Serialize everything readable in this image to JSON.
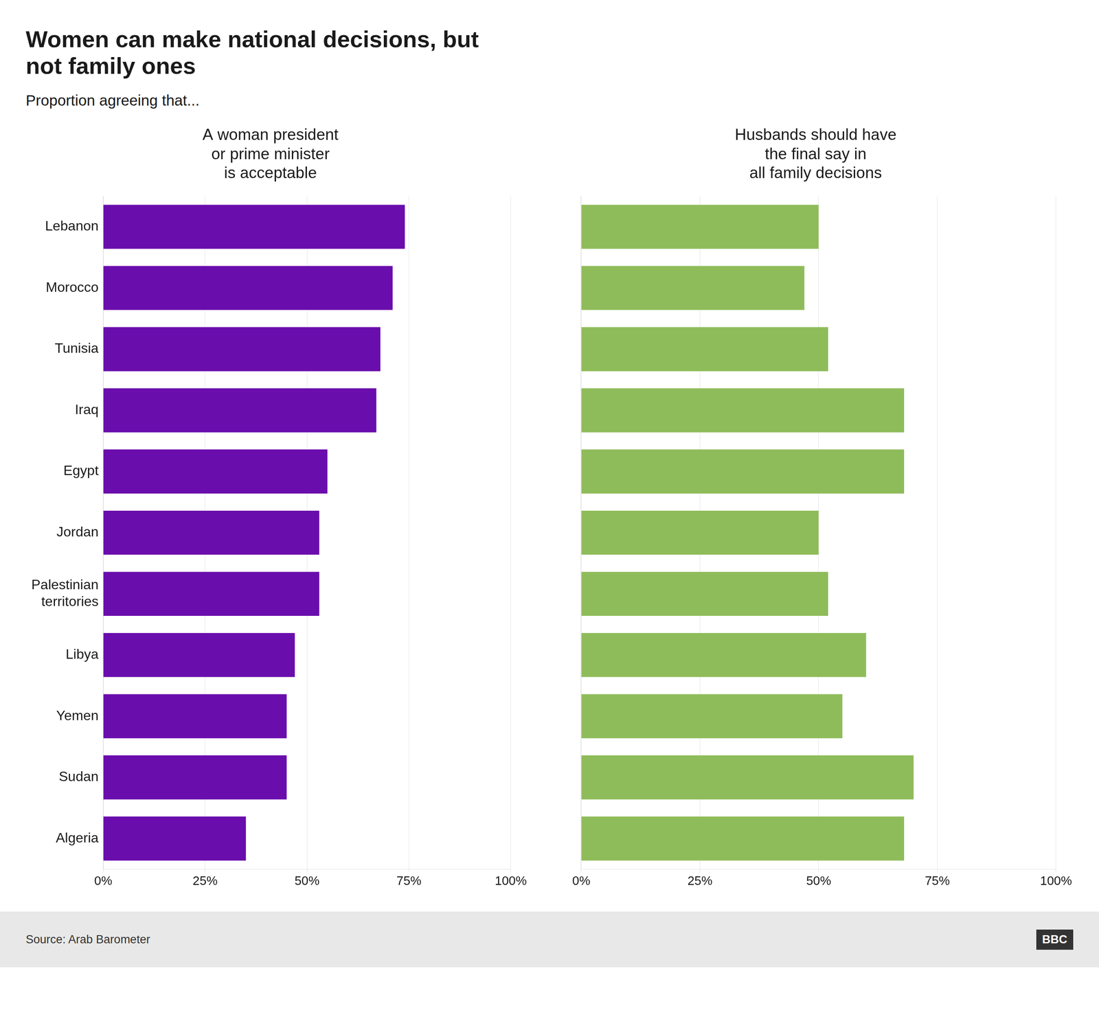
{
  "title": "Women can make national decisions, but\nnot family ones",
  "subtitle": "Proportion agreeing that...",
  "annotations": [
    "Source: Arab Barometer",
    "BBC"
  ],
  "chart_data": [
    {
      "type": "bar",
      "orientation": "horizontal",
      "title": "A woman president\nor prime minister\nis acceptable",
      "categories": [
        "Lebanon",
        "Morocco",
        "Tunisia",
        "Iraq",
        "Egypt",
        "Jordan",
        "Palestinian\nterritories",
        "Libya",
        "Yemen",
        "Sudan",
        "Algeria"
      ],
      "values": [
        74,
        71,
        68,
        67,
        55,
        53,
        53,
        47,
        45,
        45,
        35
      ],
      "color": "#6a0dad",
      "xlim": [
        0,
        100
      ],
      "xticks": [
        {
          "value": 0,
          "label": "0%"
        },
        {
          "value": 25,
          "label": "25%"
        },
        {
          "value": 50,
          "label": "50%"
        },
        {
          "value": 75,
          "label": "75%"
        },
        {
          "value": 100,
          "label": "100%"
        }
      ],
      "grid": true
    },
    {
      "type": "bar",
      "orientation": "horizontal",
      "title": "Husbands should have\nthe final say in\nall family decisions",
      "categories": [
        "Lebanon",
        "Morocco",
        "Tunisia",
        "Iraq",
        "Egypt",
        "Jordan",
        "Palestinian\nterritories",
        "Libya",
        "Yemen",
        "Sudan",
        "Algeria"
      ],
      "values": [
        50,
        47,
        52,
        68,
        68,
        50,
        52,
        60,
        55,
        70,
        68
      ],
      "color": "#8fbc5a",
      "xlim": [
        0,
        100
      ],
      "xticks": [
        {
          "value": 0,
          "label": "0%"
        },
        {
          "value": 25,
          "label": "25%"
        },
        {
          "value": 50,
          "label": "50%"
        },
        {
          "value": 75,
          "label": "75%"
        },
        {
          "value": 100,
          "label": "100%"
        }
      ],
      "grid": true,
      "tick_labels": "x"
    }
  ]
}
